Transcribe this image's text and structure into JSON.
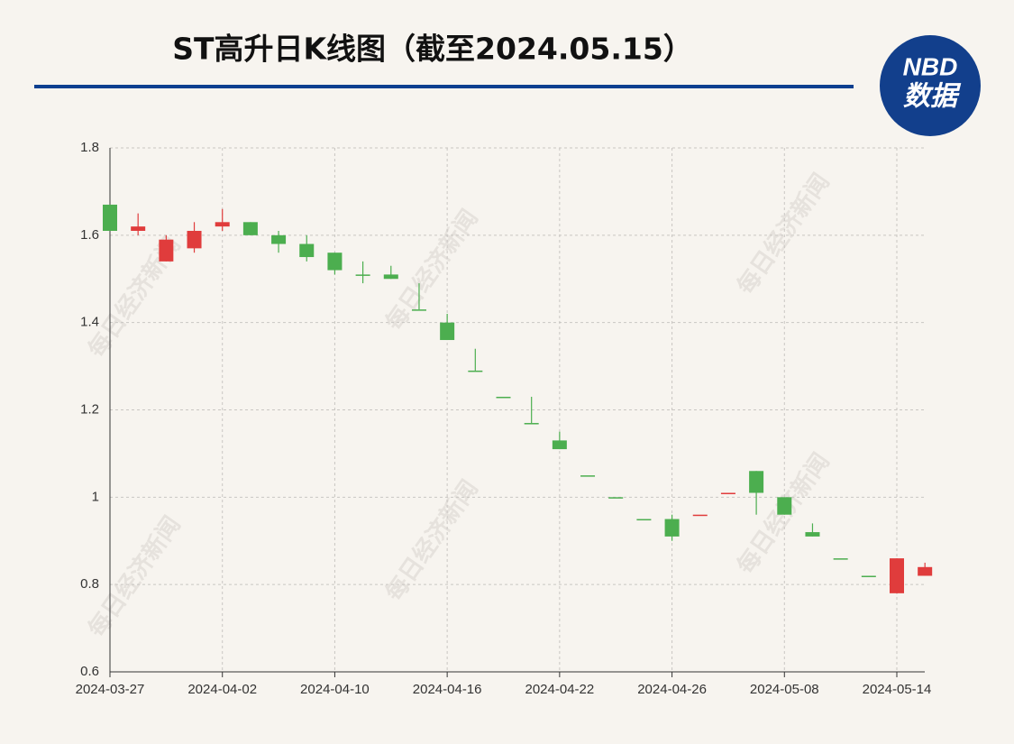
{
  "chart_data": {
    "type": "candlestick",
    "title": "ST高升日K线图（截至2024.05.15）",
    "logo": {
      "top": "NBD",
      "bottom": "数据"
    },
    "watermark": "每日经济新闻",
    "up_color": "#e03c3c",
    "down_color": "#4cae4f",
    "categories": [
      "2024-03-27",
      null,
      null,
      null,
      "2024-04-02",
      null,
      null,
      null,
      "2024-04-10",
      null,
      null,
      null,
      "2024-04-16",
      null,
      null,
      null,
      "2024-04-22",
      null,
      null,
      null,
      "2024-04-26",
      null,
      null,
      null,
      "2024-05-08",
      null,
      null,
      null,
      "2024-05-14",
      null
    ],
    "open": [
      1.67,
      1.61,
      1.54,
      1.57,
      1.62,
      1.63,
      1.6,
      1.58,
      1.56,
      1.51,
      1.51,
      1.43,
      1.4,
      1.29,
      1.23,
      1.17,
      1.13,
      1.05,
      1.0,
      0.95,
      0.95,
      0.96,
      1.01,
      1.06,
      1.0,
      0.92,
      0.86,
      0.82,
      0.78,
      0.82
    ],
    "high": [
      1.67,
      1.65,
      1.6,
      1.63,
      1.66,
      1.63,
      1.61,
      1.6,
      1.56,
      1.54,
      1.53,
      1.49,
      1.42,
      1.34,
      1.23,
      1.23,
      1.15,
      1.05,
      1.0,
      0.95,
      0.96,
      0.96,
      1.01,
      1.06,
      1.0,
      0.94,
      0.86,
      0.82,
      0.86,
      0.85
    ],
    "low": [
      1.61,
      1.6,
      1.54,
      1.56,
      1.61,
      1.6,
      1.56,
      1.54,
      1.51,
      1.49,
      1.5,
      1.43,
      1.36,
      1.29,
      1.23,
      1.17,
      1.11,
      1.05,
      1.0,
      0.95,
      0.9,
      0.96,
      1.01,
      0.96,
      0.96,
      0.91,
      0.86,
      0.82,
      0.78,
      0.82
    ],
    "close": [
      1.61,
      1.62,
      1.59,
      1.61,
      1.63,
      1.6,
      1.58,
      1.55,
      1.52,
      1.51,
      1.5,
      1.43,
      1.36,
      1.29,
      1.23,
      1.17,
      1.11,
      1.05,
      1.0,
      0.95,
      0.91,
      0.96,
      1.01,
      1.01,
      0.96,
      0.91,
      0.86,
      0.82,
      0.86,
      0.84
    ],
    "ylim": [
      0.6,
      1.8
    ],
    "yticks": [
      0.6,
      0.8,
      1,
      1.2,
      1.4,
      1.6,
      1.8
    ],
    "grid": true
  }
}
